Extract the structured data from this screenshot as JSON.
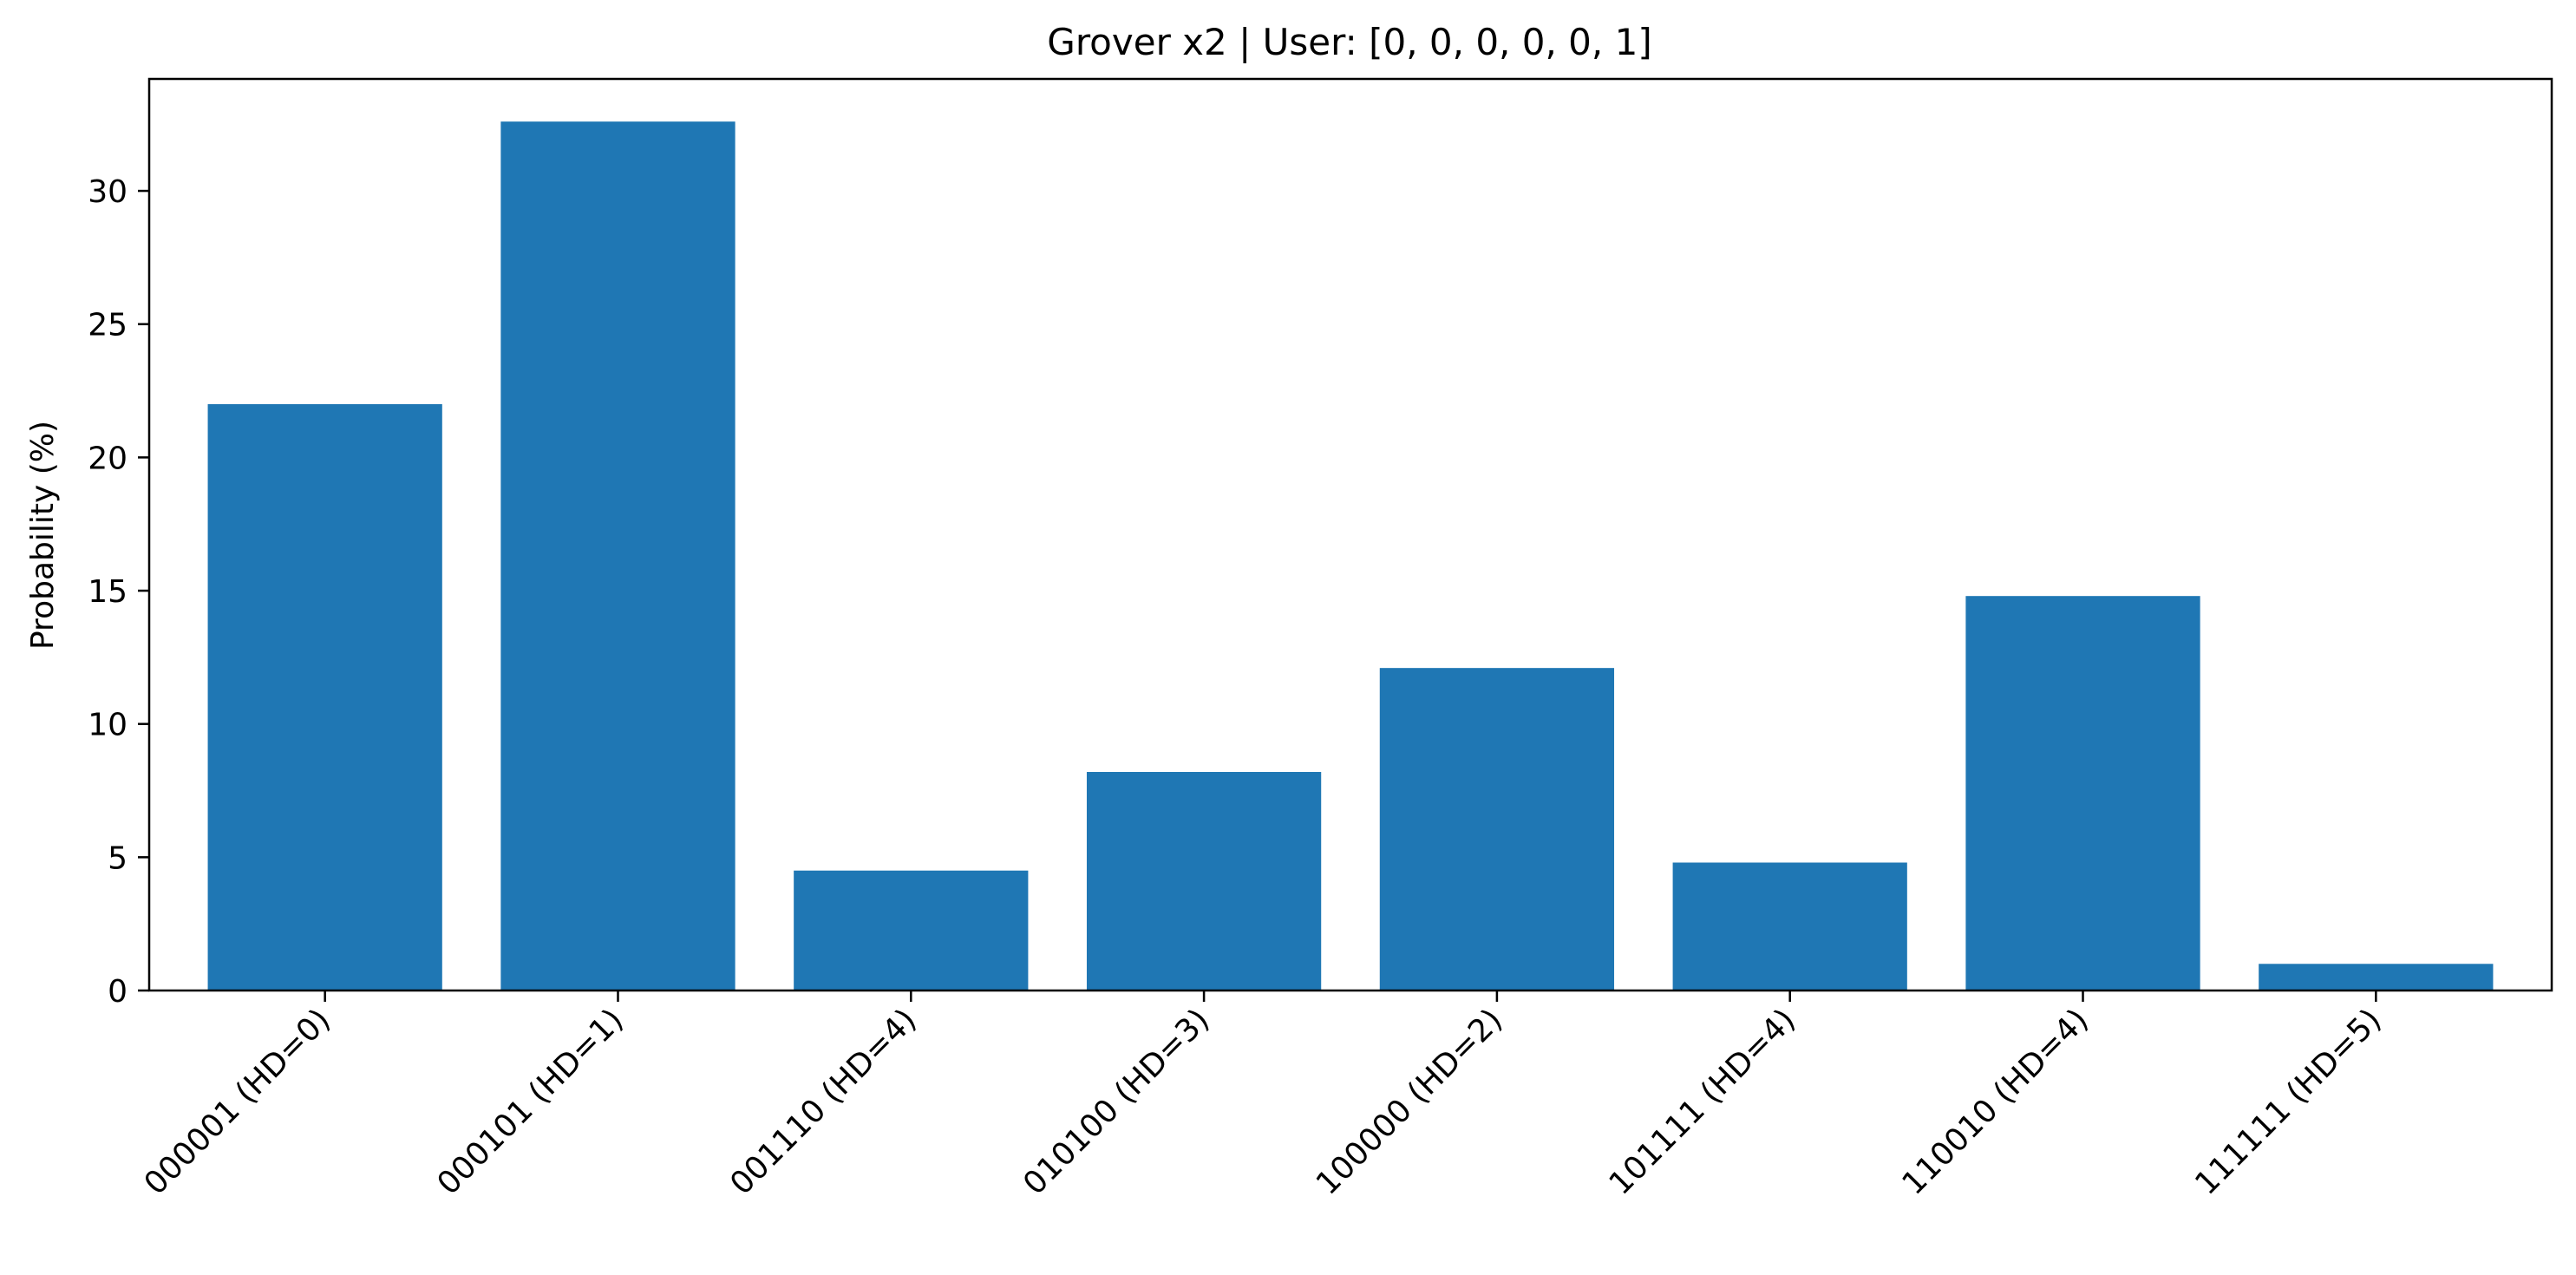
{
  "chart_data": {
    "type": "bar",
    "title": "Grover x2 | User: [0, 0, 0, 0, 0, 1]",
    "xlabel": "",
    "ylabel": "Probability (%)",
    "categories": [
      "000001 (HD=0)",
      "000101 (HD=1)",
      "001110 (HD=4)",
      "010100 (HD=3)",
      "100000 (HD=2)",
      "101111 (HD=4)",
      "110010 (HD=4)",
      "111111 (HD=5)"
    ],
    "values": [
      22.0,
      32.6,
      4.5,
      8.2,
      12.1,
      4.8,
      14.8,
      1.0
    ],
    "ylim": [
      0,
      34.2
    ],
    "yticks": [
      0,
      5,
      10,
      15,
      20,
      25,
      30
    ],
    "bar_color": "#1f77b4",
    "grid": false,
    "legend": "none"
  }
}
